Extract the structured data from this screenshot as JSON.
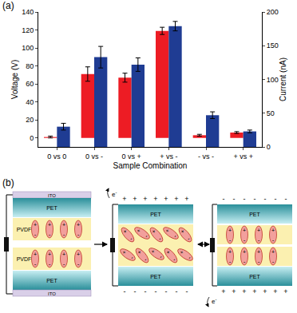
{
  "chart_label": "(a)",
  "chart_data": {
    "type": "bar",
    "categories": [
      "0 vs 0",
      "0 vs -",
      "0 vs +",
      "+ vs -",
      "- vs -",
      "+ vs +"
    ],
    "x_label": "Sample Combination",
    "y_label": "Voltage (V)",
    "y2_label": "Current (nA)",
    "series": [
      {
        "color": "#ed1c24",
        "values": [
          1,
          71,
          67,
          119,
          3,
          6
        ],
        "errors": [
          1,
          8,
          5,
          4,
          1,
          1
        ]
      },
      {
        "color": "#1f3c93",
        "axis": "y2",
        "values": [
          30,
          133,
          122,
          179,
          47,
          23
        ],
        "errors": [
          5,
          16,
          10,
          7,
          5,
          2
        ]
      }
    ],
    "ylim": [
      -10,
      140
    ],
    "yticks": [
      0,
      20,
      40,
      60,
      80,
      100,
      120,
      140
    ],
    "y2lim": [
      0,
      200
    ],
    "y2ticks": [
      0,
      50,
      100,
      150,
      200
    ],
    "grid": false
  },
  "diagram": {
    "label": "(b)",
    "ito": "ITO",
    "pet": "PET",
    "pvdf": "PVDF",
    "electron": "e",
    "plus": "+",
    "minus": "-"
  }
}
